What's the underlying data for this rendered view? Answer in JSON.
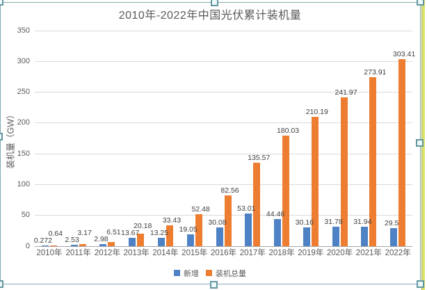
{
  "chart_data": {
    "type": "bar",
    "title": "2010年-2022年中国光伏累计装机量",
    "xlabel": "",
    "ylabel": "装机量（GW）",
    "categories": [
      "2010年",
      "2011年",
      "2012年",
      "2013年",
      "2014年",
      "2015年",
      "2016年",
      "2017年",
      "2018年",
      "2019年",
      "2020年",
      "2021年",
      "2022年"
    ],
    "series": [
      {
        "name": "新增",
        "color": "#4e82c4",
        "values": [
          0.272,
          2.53,
          2.98,
          13.67,
          13.25,
          19.05,
          30.08,
          53.01,
          44.46,
          30.16,
          31.78,
          31.94,
          29.5
        ],
        "labels": [
          "0.272",
          "2.53",
          "2.98",
          "13.67",
          "13.25",
          "19.05",
          "30.08",
          "53.01",
          "44.46",
          "30.16",
          "31.78",
          "31.94",
          "29.5"
        ]
      },
      {
        "name": "装机总量",
        "color": "#ed7d31",
        "values": [
          0.64,
          3.17,
          6.51,
          20.18,
          33.43,
          52.48,
          82.56,
          135.57,
          180.03,
          210.19,
          241.97,
          273.91,
          303.41
        ],
        "labels": [
          "0.64",
          "3.17",
          "6.51",
          "20.18",
          "33.43",
          "52.48",
          "82.56",
          "135.57",
          "180.03",
          "210.19",
          "241.97",
          "273.91",
          "303.41"
        ]
      }
    ],
    "ylim": [
      0,
      350
    ],
    "yticks": [
      0,
      50,
      100,
      150,
      200,
      250,
      300,
      350
    ],
    "grid": true,
    "legend_position": "bottom",
    "grid_color": "#d9d9d9",
    "axis_line_color": "#a6a6a6",
    "text_color": "#595959"
  }
}
